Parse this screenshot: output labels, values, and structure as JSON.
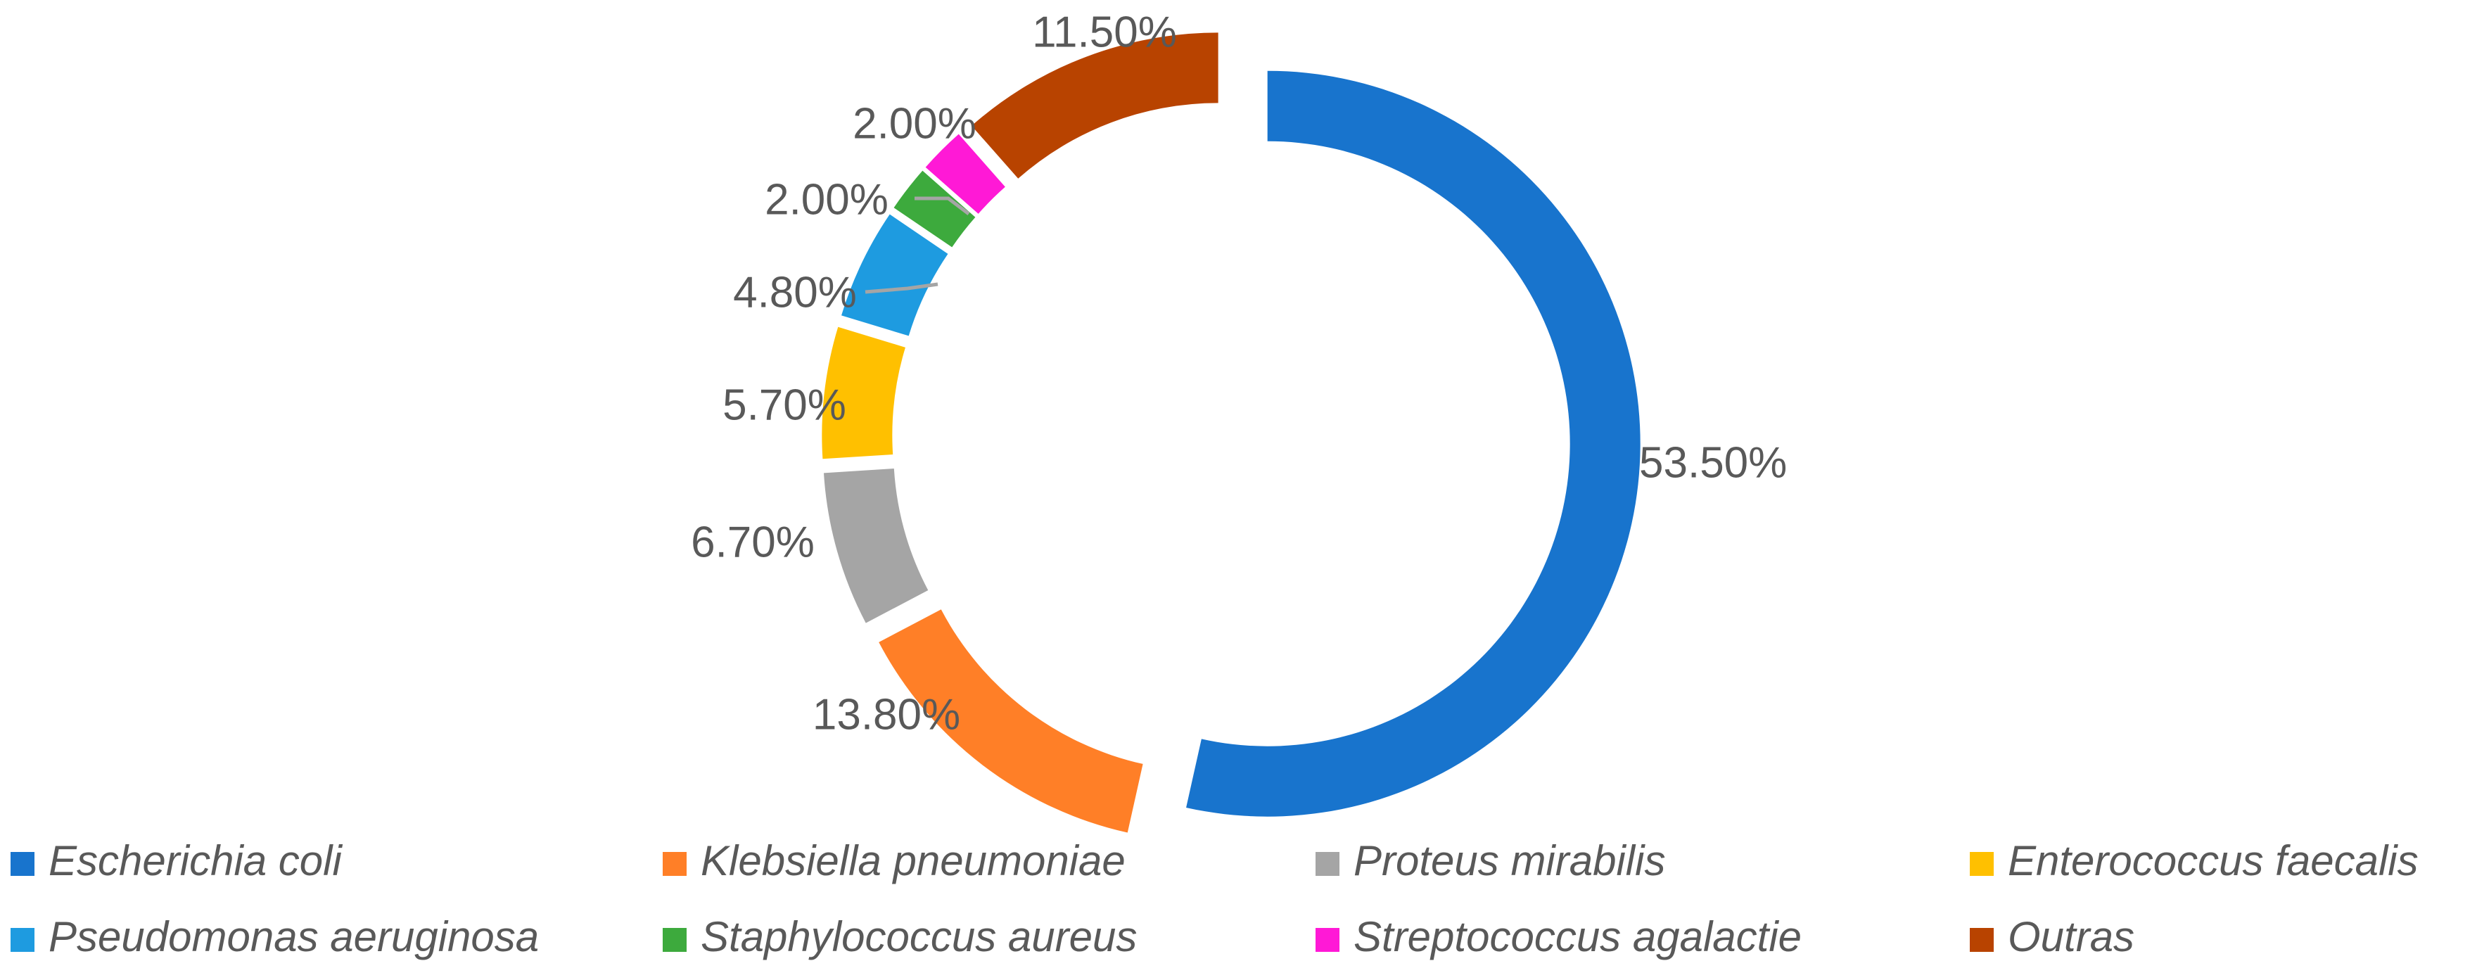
{
  "chart_data": {
    "type": "doughnut",
    "title": "",
    "series": [
      {
        "name": "Escherichia coli",
        "value": 53.5,
        "label": "53.50%",
        "color": "#1874CD"
      },
      {
        "name": "Klebsiella pneumoniae",
        "value": 13.8,
        "label": "13.80%",
        "color": "#FF7F27"
      },
      {
        "name": "Proteus mirabilis",
        "value": 6.7,
        "label": "6.70%",
        "color": "#A5A5A5"
      },
      {
        "name": "Enterococcus faecalis",
        "value": 5.7,
        "label": "5.70%",
        "color": "#FFC000"
      },
      {
        "name": "Pseudomonas aeruginosa",
        "value": 4.8,
        "label": "4.80%",
        "color": "#1E9BE0"
      },
      {
        "name": "Staphylococcus aureus",
        "value": 2.0,
        "label": "2.00%",
        "color": "#3DAA3D"
      },
      {
        "name": "Streptococcus agalactie",
        "value": 2.0,
        "label": "2.00%",
        "color": "#FF19D6"
      },
      {
        "name": "Outras",
        "value": 11.5,
        "label": "11.50%",
        "color": "#B84300"
      }
    ],
    "legend_position": "bottom",
    "leader_line_color": "#A5A5A5"
  }
}
